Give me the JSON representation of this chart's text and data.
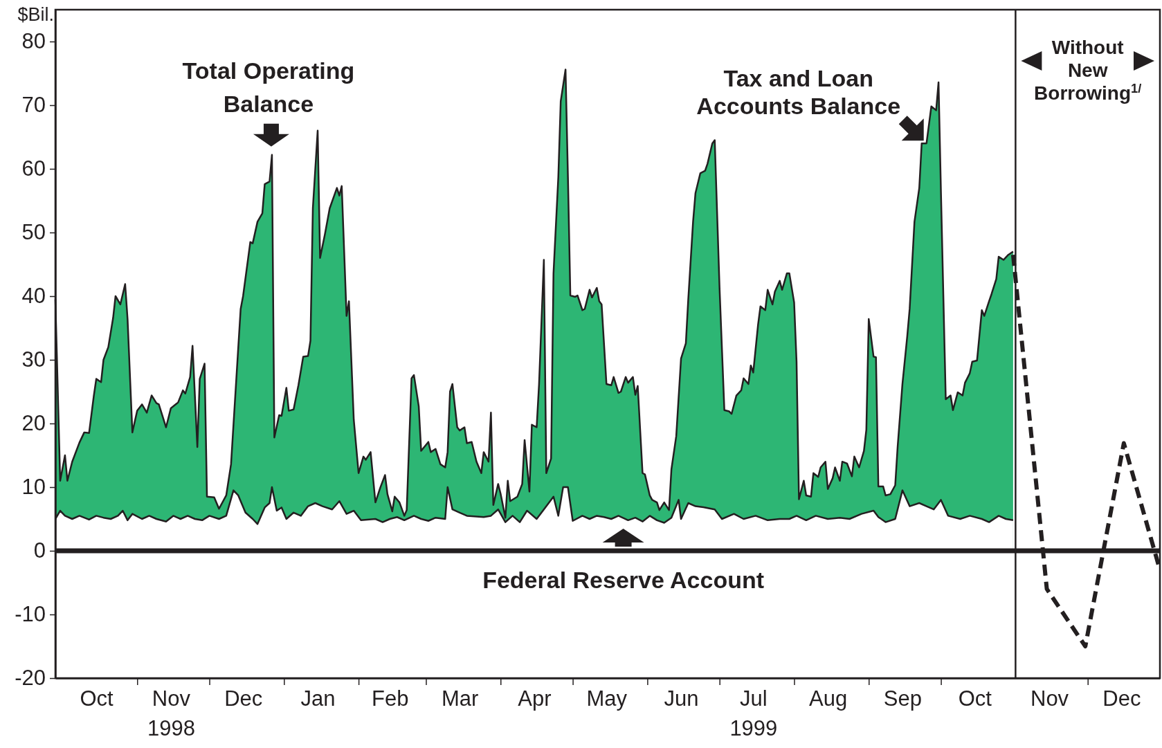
{
  "chart_data": {
    "type": "area",
    "ylabel": "$Bil.",
    "xlim": [
      "1998-09-28",
      "1999-12-31"
    ],
    "ylim": [
      -20,
      85
    ],
    "yticks": [
      -20,
      -10,
      0,
      10,
      20,
      30,
      40,
      50,
      60,
      70,
      80
    ],
    "xticks": [
      {
        "value": "1998-10-15",
        "label": "Oct"
      },
      {
        "value": "1998-11-01",
        "label": null
      },
      {
        "value": "1998-11-15",
        "label": "Nov\n1998"
      },
      {
        "value": "1998-12-01",
        "label": null
      },
      {
        "value": "1998-12-15",
        "label": "Dec"
      },
      {
        "value": "1999-01-01",
        "label": null
      },
      {
        "value": "1999-01-15",
        "label": "Jan"
      },
      {
        "value": "1999-02-01",
        "label": null
      },
      {
        "value": "1999-02-14",
        "label": "Feb"
      },
      {
        "value": "1999-03-01",
        "label": null
      },
      {
        "value": "1999-03-15",
        "label": "Mar"
      },
      {
        "value": "1999-04-01",
        "label": null
      },
      {
        "value": "1999-04-15",
        "label": "Apr"
      },
      {
        "value": "1999-05-01",
        "label": null
      },
      {
        "value": "1999-05-15",
        "label": "May"
      },
      {
        "value": "1999-06-01",
        "label": null
      },
      {
        "value": "1999-06-15",
        "label": "Jun"
      },
      {
        "value": "1999-07-01",
        "label": null
      },
      {
        "value": "1999-07-15",
        "label": "Jul\n1999"
      },
      {
        "value": "1999-08-01",
        "label": null
      },
      {
        "value": "1999-08-15",
        "label": "Aug"
      },
      {
        "value": "1999-09-01",
        "label": null
      },
      {
        "value": "1999-09-15",
        "label": "Sep"
      },
      {
        "value": "1999-10-01",
        "label": null
      },
      {
        "value": "1999-10-15",
        "label": "Oct"
      },
      {
        "value": "1999-11-15",
        "label": "Nov"
      },
      {
        "value": "1999-12-01",
        "label": null
      },
      {
        "value": "1999-12-15",
        "label": "Dec"
      }
    ],
    "series": [
      {
        "color": "#2db674",
        "x": [
          "1998-09-28",
          "1998-09-30",
          "1998-10-02",
          "1998-10-03",
          "1998-10-05",
          "1998-10-08",
          "1998-10-10",
          "1998-10-12",
          "1998-10-14",
          "1998-10-15",
          "1998-10-17",
          "1998-10-18",
          "1998-10-20",
          "1998-10-22",
          "1998-10-23",
          "1998-10-25",
          "1998-10-27",
          "1998-10-28",
          "1998-10-30",
          "1998-11-01",
          "1998-11-03",
          "1998-11-05",
          "1998-11-07",
          "1998-11-09",
          "1998-11-10",
          "1998-11-13",
          "1998-11-15",
          "1998-11-18",
          "1998-11-20",
          "1998-11-21",
          "1998-11-23",
          "1998-11-24",
          "1998-11-26",
          "1998-11-27",
          "1998-11-29",
          "1998-11-30",
          "1998-12-03",
          "1998-12-05",
          "1998-12-08",
          "1998-12-10",
          "1998-12-14",
          "1998-12-15",
          "1998-12-18",
          "1998-12-19",
          "1998-12-21",
          "1998-12-23",
          "1998-12-24",
          "1998-12-26",
          "1998-12-27",
          "1998-12-28",
          "1998-12-30",
          "1998-12-31",
          "1999-01-02",
          "1999-01-03",
          "1999-01-05",
          "1999-01-07",
          "1999-01-09",
          "1999-01-11",
          "1999-01-12",
          "1999-01-13",
          "1999-01-15",
          "1999-01-16",
          "1999-01-18",
          "1999-01-20",
          "1999-01-23",
          "1999-01-24",
          "1999-01-25",
          "1999-01-27",
          "1999-01-28",
          "1999-01-30",
          "1999-02-01",
          "1999-02-03",
          "1999-02-04",
          "1999-02-06",
          "1999-02-08",
          "1999-02-10",
          "1999-02-12",
          "1999-02-13",
          "1999-02-15",
          "1999-02-16",
          "1999-02-18",
          "1999-02-20",
          "1999-02-21",
          "1999-02-23",
          "1999-02-24",
          "1999-02-26",
          "1999-02-27",
          "1999-03-02",
          "1999-03-03",
          "1999-03-05",
          "1999-03-07",
          "1999-03-09",
          "1999-03-10",
          "1999-03-11",
          "1999-03-12",
          "1999-03-14",
          "1999-03-15",
          "1999-03-17",
          "1999-03-18",
          "1999-03-20",
          "1999-03-22",
          "1999-03-24",
          "1999-03-25",
          "1999-03-27",
          "1999-03-28",
          "1999-03-29",
          "1999-03-31",
          "1999-04-01",
          "1999-04-03",
          "1999-04-04",
          "1999-04-05",
          "1999-04-08",
          "1999-04-10",
          "1999-04-11",
          "1999-04-13",
          "1999-04-14",
          "1999-04-16",
          "1999-04-17",
          "1999-04-19",
          "1999-04-20",
          "1999-04-22",
          "1999-04-23",
          "1999-04-25",
          "1999-04-26",
          "1999-04-28",
          "1999-04-29",
          "1999-04-30",
          "1999-05-02",
          "1999-05-03",
          "1999-05-05",
          "1999-05-06",
          "1999-05-08",
          "1999-05-09",
          "1999-05-11",
          "1999-05-12",
          "1999-05-13",
          "1999-05-15",
          "1999-05-17",
          "1999-05-18",
          "1999-05-20",
          "1999-05-21",
          "1999-05-23",
          "1999-05-24",
          "1999-05-26",
          "1999-05-27",
          "1999-05-28",
          "1999-05-30",
          "1999-05-31",
          "1999-06-02",
          "1999-06-03",
          "1999-06-05",
          "1999-06-06",
          "1999-06-08",
          "1999-06-10",
          "1999-06-11",
          "1999-06-13",
          "1999-06-15",
          "1999-06-17",
          "1999-06-18",
          "1999-06-20",
          "1999-06-21",
          "1999-06-23",
          "1999-06-25",
          "1999-06-26",
          "1999-06-28",
          "1999-06-29",
          "1999-07-01",
          "1999-07-03",
          "1999-07-05",
          "1999-07-06",
          "1999-07-08",
          "1999-07-10",
          "1999-07-11",
          "1999-07-13",
          "1999-07-14",
          "1999-07-15",
          "1999-07-17",
          "1999-07-18",
          "1999-07-20",
          "1999-07-21",
          "1999-07-23",
          "1999-07-24",
          "1999-07-26",
          "1999-07-27",
          "1999-07-29",
          "1999-07-30",
          "1999-08-01",
          "1999-08-02",
          "1999-08-03",
          "1999-08-05",
          "1999-08-06",
          "1999-08-08",
          "1999-08-09",
          "1999-08-11",
          "1999-08-12",
          "1999-08-14",
          "1999-08-15",
          "1999-08-17",
          "1999-08-18",
          "1999-08-20",
          "1999-08-21",
          "1999-08-23",
          "1999-08-25",
          "1999-08-26",
          "1999-08-28",
          "1999-08-30",
          "1999-08-31",
          "1999-09-01",
          "1999-09-03",
          "1999-09-04",
          "1999-09-05",
          "1999-09-07",
          "1999-09-08",
          "1999-09-10",
          "1999-09-12",
          "1999-09-13",
          "1999-09-15",
          "1999-09-17",
          "1999-09-18",
          "1999-09-20",
          "1999-09-22",
          "1999-09-23",
          "1999-09-25",
          "1999-09-27",
          "1999-09-29",
          "1999-09-30",
          "1999-10-01",
          "1999-10-03",
          "1999-10-05",
          "1999-10-06",
          "1999-10-08",
          "1999-10-10",
          "1999-10-11",
          "1999-10-13",
          "1999-10-14",
          "1999-10-16",
          "1999-10-18",
          "1999-10-19",
          "1999-10-21",
          "1999-10-22",
          "1999-10-24",
          "1999-10-25",
          "1999-10-27",
          "1999-10-29",
          "1999-10-31"
        ],
        "values": [
          39.5,
          11,
          15,
          11,
          14,
          17,
          18.6,
          18.5,
          24.4,
          27,
          26.5,
          30,
          32,
          36.6,
          40,
          38.7,
          41.9,
          36.4,
          18.6,
          22,
          23,
          21.7,
          24.4,
          23.2,
          23,
          19.4,
          22.4,
          23.3,
          25.2,
          24.7,
          27.3,
          32.2,
          16.3,
          27,
          29.4,
          8.5,
          8.4,
          6.6,
          8.7,
          13.6,
          38,
          40,
          48.5,
          48.3,
          51.7,
          53,
          57.6,
          58,
          62.2,
          17.8,
          21.3,
          21.2,
          25.6,
          22,
          22.2,
          26,
          30.5,
          30.6,
          33,
          53.8,
          66,
          46,
          49.7,
          53.8,
          57,
          55.8,
          57.3,
          36.9,
          39.2,
          20.6,
          12.2,
          14.8,
          14.3,
          15.5,
          7.6,
          9.9,
          11.9,
          8.9,
          6.2,
          8.5,
          7.6,
          5.5,
          6.4,
          27.1,
          27.6,
          22.7,
          15.7,
          17.1,
          15.5,
          16,
          13.6,
          13.1,
          15.5,
          25,
          26.2,
          19.4,
          18.9,
          19.4,
          16.9,
          17.1,
          14,
          12.2,
          15.5,
          14,
          21.7,
          7.2,
          10.5,
          9,
          5.2,
          11,
          7.8,
          8.5,
          10.5,
          17.4,
          9.3,
          19.8,
          19.4,
          26.2,
          45.7,
          12.2,
          14.5,
          43.6,
          58.7,
          70.6,
          75.6,
          58.7,
          40.1,
          39.9,
          40.1,
          37.8,
          38,
          41,
          39.8,
          41.3,
          39.2,
          38.7,
          26.2,
          26,
          27.3,
          24.8,
          25,
          27.3,
          26.4,
          27.3,
          24.5,
          25.9,
          12.2,
          12,
          8.7,
          8,
          7.6,
          6.4,
          7.6,
          6.4,
          12.8,
          18,
          30.2,
          32.6,
          39.5,
          51.7,
          56.2,
          59.3,
          59.7,
          60.8,
          64,
          64.5,
          41.3,
          22.1,
          21.9,
          21.5,
          24.4,
          25.2,
          27.1,
          26.2,
          29.1,
          28,
          35.5,
          38.4,
          37.8,
          41,
          38.7,
          40.7,
          42.4,
          41,
          43.6,
          43.6,
          39,
          29.7,
          8.1,
          11,
          8.7,
          8.5,
          12.2,
          11.6,
          13.1,
          14,
          9.7,
          11.4,
          13.1,
          11,
          14,
          13.7,
          11.7,
          14.8,
          13.1,
          15.7,
          19,
          36.4,
          30.5,
          30.4,
          10.1,
          10.1,
          8.7,
          8.9,
          10.3,
          16.3,
          26.2,
          33.7,
          38,
          51.7,
          57,
          64,
          64,
          69.8,
          69.2,
          73.6,
          56.4,
          23.8,
          24.4,
          22.1,
          24.9,
          24.4,
          26.4,
          27.9,
          29.7,
          29.9,
          37.8,
          36.9,
          39.2,
          40.3,
          42.7,
          46.2,
          45.7,
          46.5,
          47
        ]
      },
      {
        "color": "#ffffff",
        "x": [
          "1998-09-28",
          "1998-09-30",
          "1998-10-02",
          "1998-10-05",
          "1998-10-08",
          "1998-10-12",
          "1998-10-15",
          "1998-10-18",
          "1998-10-21",
          "1998-10-24",
          "1998-10-26",
          "1998-10-28",
          "1998-10-30",
          "1998-11-03",
          "1998-11-06",
          "1998-11-09",
          "1998-11-13",
          "1998-11-16",
          "1998-11-19",
          "1998-11-22",
          "1998-11-25",
          "1998-11-28",
          "1998-12-01",
          "1998-12-05",
          "1998-12-08",
          "1998-12-11",
          "1998-12-13",
          "1998-12-16",
          "1998-12-19",
          "1998-12-21",
          "1998-12-24",
          "1998-12-26",
          "1998-12-27",
          "1998-12-29",
          "1998-12-31",
          "1999-01-02",
          "1999-01-05",
          "1999-01-08",
          "1999-01-11",
          "1999-01-14",
          "1999-01-17",
          "1999-01-21",
          "1999-01-24",
          "1999-01-27",
          "1999-01-30",
          "1999-02-02",
          "1999-02-08",
          "1999-02-11",
          "1999-02-14",
          "1999-02-17",
          "1999-02-20",
          "1999-02-24",
          "1999-02-27",
          "1999-03-02",
          "1999-03-05",
          "1999-03-09",
          "1999-03-10",
          "1999-03-12",
          "1999-03-15",
          "1999-03-18",
          "1999-03-25",
          "1999-03-28",
          "1999-03-31",
          "1999-04-03",
          "1999-04-06",
          "1999-04-09",
          "1999-04-12",
          "1999-04-16",
          "1999-04-19",
          "1999-04-23",
          "1999-04-25",
          "1999-04-27",
          "1999-04-29",
          "1999-05-01",
          "1999-05-05",
          "1999-05-08",
          "1999-05-11",
          "1999-05-14",
          "1999-05-17",
          "1999-05-20",
          "1999-05-24",
          "1999-05-27",
          "1999-05-30",
          "1999-06-02",
          "1999-06-05",
          "1999-06-08",
          "1999-06-11",
          "1999-06-14",
          "1999-06-15",
          "1999-06-18",
          "1999-06-21",
          "1999-06-25",
          "1999-06-29",
          "1999-07-02",
          "1999-07-07",
          "1999-07-11",
          "1999-07-16",
          "1999-07-21",
          "1999-07-26",
          "1999-07-30",
          "1999-08-02",
          "1999-08-06",
          "1999-08-10",
          "1999-08-15",
          "1999-08-20",
          "1999-08-24",
          "1999-08-29",
          "1999-09-03",
          "1999-09-05",
          "1999-09-08",
          "1999-09-12",
          "1999-09-15",
          "1999-09-18",
          "1999-09-22",
          "1999-09-25",
          "1999-09-28",
          "1999-10-01",
          "1999-10-04",
          "1999-10-09",
          "1999-10-13",
          "1999-10-18",
          "1999-10-21",
          "1999-10-25",
          "1999-10-28",
          "1999-10-31"
        ],
        "values": [
          5,
          6.3,
          5.5,
          5,
          5.5,
          4.9,
          5.5,
          5.2,
          5,
          5.5,
          6.3,
          4.8,
          5.8,
          5,
          5.5,
          5,
          4.6,
          5.5,
          5,
          5.5,
          5,
          4.8,
          5.5,
          5,
          5.5,
          9.5,
          8.7,
          6,
          5,
          4.2,
          6.8,
          7.5,
          10,
          6.3,
          6.8,
          5,
          6,
          5.5,
          7,
          7.5,
          7,
          6.5,
          7.8,
          5.8,
          6.3,
          4.8,
          5,
          4.5,
          5,
          5.3,
          4.8,
          5.5,
          5,
          4.7,
          5.2,
          5,
          10,
          6.5,
          6,
          5.5,
          5.3,
          5.5,
          6.5,
          4.5,
          5.5,
          4.5,
          6.3,
          5,
          6.5,
          8.5,
          5.5,
          10,
          10,
          4.7,
          5.5,
          5,
          5.5,
          5.3,
          5,
          5.5,
          4.8,
          5.2,
          4.6,
          5.5,
          4.8,
          4.4,
          5.2,
          8,
          5,
          7.5,
          7,
          6.8,
          6.5,
          5,
          5.8,
          5,
          5.5,
          4.8,
          5,
          5,
          5.5,
          4.8,
          5.5,
          5,
          5.2,
          5,
          5.8,
          6.3,
          5.3,
          4.5,
          5,
          9.5,
          7,
          7.5,
          7,
          6.5,
          8,
          5.5,
          5,
          5.5,
          5,
          4.5,
          5.5,
          5,
          4.8
        ]
      },
      {
        "type": "line",
        "line_style": "dashed",
        "color": "#231f20",
        "x": [
          "1999-10-31",
          "1999-11-14",
          "1999-11-30",
          "1999-12-16",
          "1999-12-31"
        ],
        "values": [
          46.5,
          -6,
          -15,
          16.9,
          -3
        ]
      }
    ],
    "ref_lines": [
      {
        "axis": "y",
        "value": 0,
        "color": "#231f20"
      },
      {
        "axis": "x",
        "value": "1999-11-01",
        "color": "#231f20"
      }
    ],
    "annotations": [
      {
        "text": "Total Operating Balance",
        "x": "1998-12-27",
        "y": 62.2
      },
      {
        "text": "Tax and Loan Accounts Balance",
        "x": "1999-09-25",
        "y": 64
      },
      {
        "text": "Federal Reserve Account",
        "x": "1999-05-22",
        "y": 0
      },
      "Without New Borrowing$^{1/}$"
    ]
  }
}
